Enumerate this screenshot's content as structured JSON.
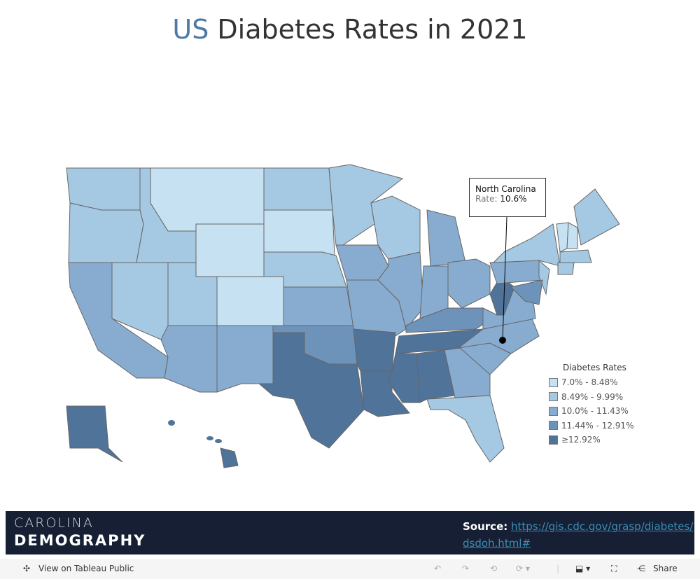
{
  "title": {
    "prefix": "US",
    "rest": " Diabetes Rates in 2021"
  },
  "chart_data": {
    "type": "choropleth",
    "title": "US Diabetes Rates in 2021",
    "legend_title": "Diabetes Rates",
    "legend_position": "right",
    "bins": [
      {
        "label": "7.0% - 8.48%",
        "color": "#c6e1f2"
      },
      {
        "label": "8.49% - 9.99%",
        "color": "#a5c8e3"
      },
      {
        "label": "10.0% - 11.43%",
        "color": "#88acd0"
      },
      {
        "label": "11.44% - 12.91%",
        "color": "#6d93bb"
      },
      {
        "label": "≥12.92%",
        "color": "#50739a"
      }
    ],
    "states": {
      "WA": 1,
      "OR": 1,
      "CA": 2,
      "NV": 1,
      "ID": 1,
      "MT": 0,
      "WY": 0,
      "UT": 1,
      "AZ": 2,
      "CO": 0,
      "NM": 2,
      "ND": 1,
      "SD": 0,
      "NE": 1,
      "KS": 2,
      "OK": 3,
      "TX": 4,
      "MN": 1,
      "IA": 2,
      "MO": 2,
      "AR": 4,
      "LA": 4,
      "WI": 1,
      "IL": 2,
      "MI": 2,
      "IN": 2,
      "OH": 2,
      "KY": 3,
      "TN": 4,
      "MS": 4,
      "AL": 4,
      "GA": 2,
      "FL": 1,
      "SC": 2,
      "NC": 2,
      "VA": 2,
      "WV": 4,
      "PA": 2,
      "NY": 1,
      "NJ": 1,
      "MD": 3,
      "VT": 0,
      "NH": 0,
      "ME": 1,
      "MA": 1,
      "CT": 1,
      "AK": 4,
      "HI": 4
    },
    "tooltip": {
      "state": "North Carolina",
      "label": "Rate:",
      "value": "10.6%"
    }
  },
  "footer": {
    "logo_line1": "CAROLINA",
    "logo_line2": "DEMOGRAPHY",
    "source_label": "Source:",
    "source_url": "https://gis.cdc.gov/grasp/diabetes/dsdoh.html#"
  },
  "toolbar": {
    "view": "View on Tableau Public",
    "share": "Share"
  }
}
